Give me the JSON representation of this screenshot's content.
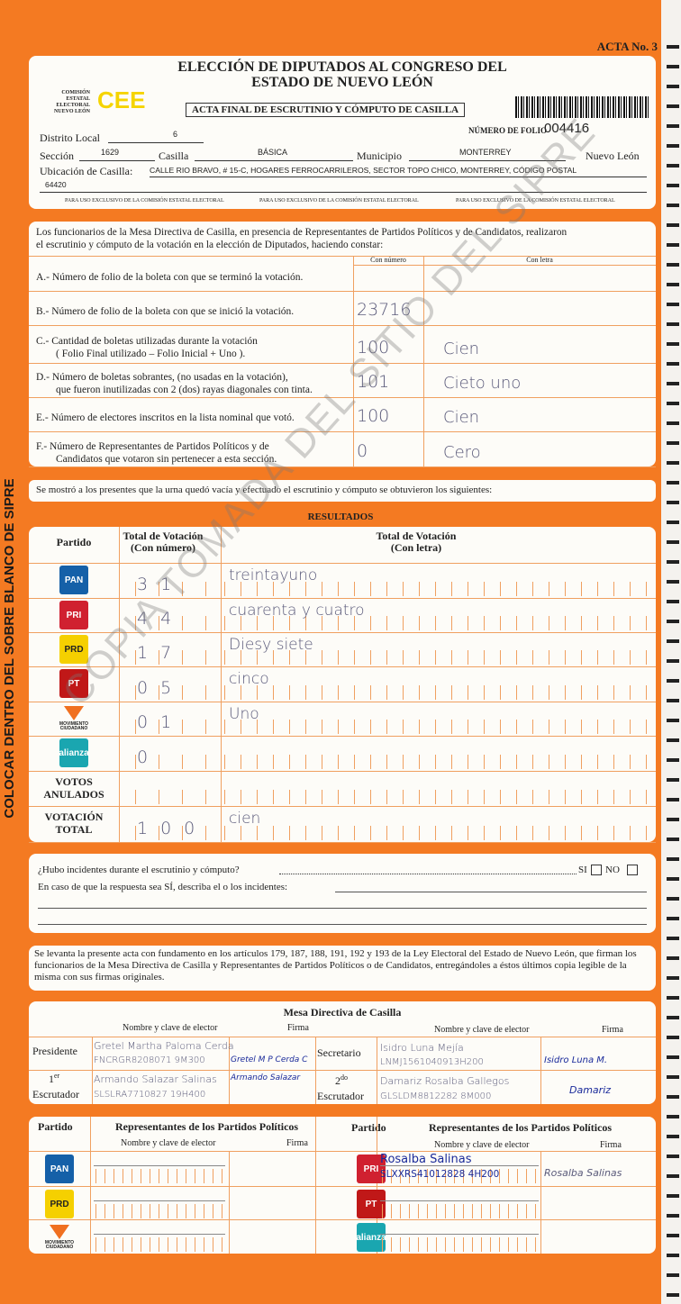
{
  "acta_no": "ACTA No. 3",
  "side_text": "COLOCAR DENTRO DEL SOBRE BLANCO DE SIPRE",
  "watermark": "COPIA TOMADA DEL SITIO DEL SIPRE",
  "header": {
    "title1": "ELECCIÓN DE DIPUTADOS AL CONGRESO DEL",
    "title2": "ESTADO DE NUEVO LEÓN",
    "org": "COMISIÓN ESTATAL ELECTORAL NUEVO LEÓN",
    "logo": "CEE",
    "subtitle": "ACTA FINAL DE ESCRUTINIO Y CÓMPUTO DE CASILLA",
    "folio_label": "NÚMERO DE FOLIO",
    "folio": "004416",
    "distrito_label": "Distrito Local",
    "distrito": "6",
    "seccion_label": "Sección",
    "seccion": "1629",
    "casilla_label": "Casilla",
    "casilla": "BÁSICA",
    "municipio_label": "Municipio",
    "municipio": "MONTERREY",
    "estado": "Nuevo León",
    "ubicacion_label": "Ubicación de Casilla:",
    "ubicacion": "CALLE RIO BRAVO, # 15-C, HOGARES FERROCARRILEROS, SECTOR TOPO CHICO, MONTERREY, CÓDIGO POSTAL",
    "cp": "64420",
    "exclusivo": "PARA USO EXCLUSIVO DE LA COMISIÓN ESTATAL ELECTORAL"
  },
  "constancia": {
    "intro1": "Los funcionarios de la Mesa Directiva de Casilla, en presencia de Representantes de Partidos Políticos  y de Candidatos, realizaron",
    "intro2": "el escrutinio y cómputo de la votación en la elección de Diputados, haciendo constar:",
    "col_numero": "Con número",
    "col_letra": "Con letra",
    "rows": [
      {
        "l1": "A.- Número de folio de la boleta con que se terminó la votación.",
        "l2": "",
        "num": "",
        "letra": ""
      },
      {
        "l1": "B.- Número de folio de la boleta con que se inició la votación.",
        "l2": "",
        "num": "23716",
        "letra": ""
      },
      {
        "l1": "C.- Cantidad de boletas utilizadas durante la votación",
        "l2": "( Folio Final utilizado – Folio Inicial + Uno ).",
        "num": "100",
        "letra": "Cien"
      },
      {
        "l1": "D.- Número de boletas sobrantes, (no usadas en la votación),",
        "l2": "que fueron inutilizadas con 2 (dos) rayas diagonales con tinta.",
        "num": "101",
        "letra": "Cieto uno"
      },
      {
        "l1": "E.- Número de electores inscritos en la lista nominal que votó.",
        "l2": "",
        "num": "100",
        "letra": "Cien"
      },
      {
        "l1": "F.- Número de Representantes de Partidos Políticos y de",
        "l2": "Candidatos que votaron sin pertenecer a esta sección.",
        "num": "0",
        "letra": "Cero"
      }
    ]
  },
  "mostro": "Se mostró a los presentes que la urna quedó vacía y efectuado el escrutinio y cómputo se obtuvieron los siguientes:",
  "resultados": {
    "title": "RESULTADOS",
    "col_partido": "Partido",
    "col_num": "Total de Votación (Con número)",
    "col_letra": "Total de Votación (Con letra)",
    "rows": [
      {
        "party": "PAN",
        "color": "#1560a8",
        "num": "31",
        "letra": "treintayuno"
      },
      {
        "party": "PRI-PVEM",
        "color": "#d02030",
        "num": "44",
        "letra": "cuarenta y cuatro"
      },
      {
        "party": "PRD",
        "color": "#f5d000",
        "num": "17",
        "letra": "Diesy siete"
      },
      {
        "party": "PT",
        "color": "#c01818",
        "num": "05",
        "letra": "cinco"
      },
      {
        "party": "MOVIMIENTO CIUDADANO",
        "color": "#f07020",
        "num": "01",
        "letra": "Uno"
      },
      {
        "party": "alianza",
        "color": "#1aa6b0",
        "num": "0",
        "letra": ""
      },
      {
        "party": "VOTOS ANULADOS",
        "color": "",
        "num": "",
        "letra": ""
      },
      {
        "party": "VOTACIÓN TOTAL",
        "color": "",
        "num": "100",
        "letra": "cien"
      }
    ]
  },
  "incidentes": {
    "q": "¿Hubo incidentes durante el escrutinio y cómputo?",
    "si": "SI",
    "no": "NO",
    "describe": "En caso de que la respuesta sea SÍ, describa el o los incidentes:"
  },
  "legal": "Se levanta la presente acta con fundamento en los artículos 179, 187, 188, 191, 192 y 193 de la Ley Electoral del Estado de Nuevo León, que firman los funcionarios de la Mesa Directiva de Casilla y Representantes de  Partidos Políticos o de Candidatos, entregándoles a éstos últimos copia legible de la misma con sus firmas originales.",
  "mesa": {
    "title": "Mesa Directiva de Casilla",
    "col_nombre": "Nombre y clave de elector",
    "col_firma": "Firma",
    "presidente": {
      "role": "Presidente",
      "name": "Gretel Martha Paloma Cerda",
      "clave": "FNCRGR8208071 9M300",
      "firma": "Gretel M P Cerda C"
    },
    "secretario": {
      "role": "Secretario",
      "name": "Isidro Luna Mejía",
      "clave": "LNMJ1561040913H200",
      "firma": "Isidro Luna M."
    },
    "escrutador1": {
      "role_sup": "er",
      "role_num": "1",
      "role": "Escrutador",
      "name": "Armando Salazar Salinas",
      "clave": "SLSLRA7710827 19H400",
      "firma": "Armando Salazar"
    },
    "escrutador2": {
      "role_sup": "do",
      "role_num": "2",
      "role": "Escrutador",
      "name": "Damariz Rosalba Gallegos",
      "clave": "GLSLDM8812282 8M000",
      "firma": "Damariz"
    }
  },
  "representantes": {
    "col_partido": "Partido",
    "title": "Representantes de los Partidos Políticos",
    "col_nombre": "Nombre y clave de elector",
    "col_firma": "Firma",
    "left": [
      {
        "party": "PAN",
        "color": "#1560a8"
      },
      {
        "party": "PRD",
        "color": "#f5d000"
      },
      {
        "party": "MOVIMIENTO CIUDADANO",
        "color": "#f07020"
      }
    ],
    "right": [
      {
        "party": "PRI-PVEM",
        "color": "#d02030",
        "name": "Rosalba Salinas",
        "clave": "SLXXRS41012828 4H200",
        "firma": "Rosalba Salinas"
      },
      {
        "party": "PT",
        "color": "#c01818"
      },
      {
        "party": "alianza",
        "color": "#1aa6b0"
      }
    ]
  }
}
